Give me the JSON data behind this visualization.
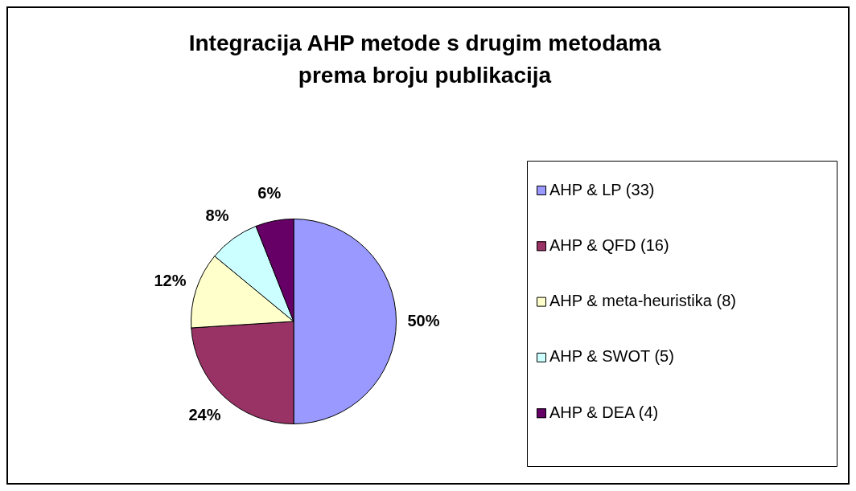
{
  "chart_data": {
    "type": "pie",
    "title": "Integracija AHP metode s drugim metodama\nprema broju publikacija",
    "categories": [
      "AHP & LP (33)",
      "AHP & QFD (16)",
      "AHP & meta-heuristika (8)",
      "AHP & SWOT (5)",
      "AHP & DEA (4)"
    ],
    "values": [
      50,
      24,
      12,
      8,
      6
    ],
    "value_labels": [
      "50%",
      "24%",
      "12%",
      "8%",
      "6%"
    ],
    "colors": [
      "#9999ff",
      "#993366",
      "#ffffcc",
      "#ccffff",
      "#660066"
    ],
    "legend": "right"
  }
}
